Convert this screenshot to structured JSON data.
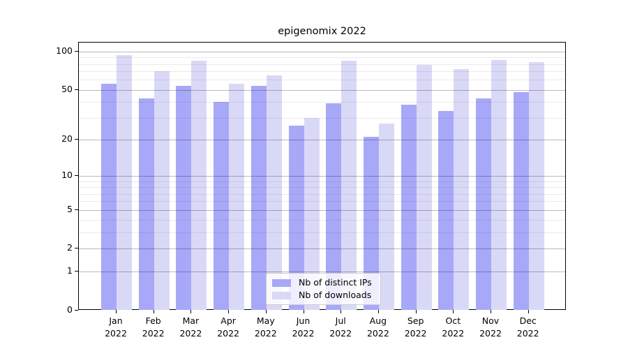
{
  "chart_data": {
    "type": "bar",
    "title": "epigenomix 2022",
    "categories": [
      "Jan 2022",
      "Feb 2022",
      "Mar 2022",
      "Apr 2022",
      "May 2022",
      "Jun 2022",
      "Jul 2022",
      "Aug 2022",
      "Sep 2022",
      "Oct 2022",
      "Nov 2022",
      "Dec 2022"
    ],
    "series": [
      {
        "name": "Nb of distinct IPs",
        "color": "#a8a8f8",
        "values": [
          56,
          43,
          54,
          40,
          54,
          26,
          39,
          21,
          38,
          34,
          43,
          48
        ]
      },
      {
        "name": "Nb of downloads",
        "color": "#d9d9f7",
        "values": [
          94,
          70,
          85,
          56,
          65,
          30,
          85,
          27,
          79,
          73,
          86,
          83
        ]
      }
    ],
    "xlabel": "",
    "ylabel": "",
    "yscale": "log1p",
    "ylim": [
      0,
      118
    ],
    "y_major_ticks": [
      0,
      1,
      2,
      5,
      10,
      20,
      50,
      100
    ],
    "y_minor_gridlines": [
      3,
      4,
      6,
      7,
      8,
      9,
      30,
      40,
      60,
      70,
      80,
      90
    ],
    "grid": "horizontal major and minor, drawn above bars",
    "legend_position": "lower center inside axes"
  },
  "legend": {
    "items": [
      {
        "label": "Nb of distinct IPs",
        "swatch_color": "#a8a8f8"
      },
      {
        "label": "Nb of downloads",
        "swatch_color": "#d9d9f7"
      }
    ]
  }
}
